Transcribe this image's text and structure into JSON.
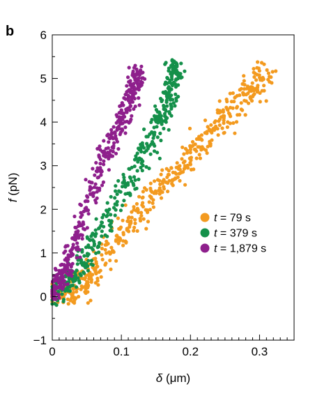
{
  "panel_label": "b",
  "colors": {
    "t79": "#f39a1f",
    "t379": "#14904a",
    "t1879": "#8e1f8c"
  },
  "chart_data": {
    "type": "scatter",
    "xlabel": "δ (μm)",
    "ylabel": "f (pN)",
    "xlim": [
      0,
      0.35
    ],
    "ylim": [
      -1,
      6
    ],
    "xticks": [
      0,
      0.1,
      0.2,
      0.3
    ],
    "xtick_labels": [
      "0",
      "0.1",
      "0.2",
      "0.3"
    ],
    "yticks": [
      -1,
      0,
      1,
      2,
      3,
      4,
      5,
      6
    ],
    "ytick_labels": [
      "−1",
      "0",
      "1",
      "2",
      "3",
      "4",
      "5",
      "6"
    ],
    "grid": false,
    "legend_position": "center-right",
    "series": [
      {
        "name": "t = 79 s",
        "legend_var": "t",
        "legend_rest": " = 79 s",
        "color": "#f39a1f",
        "path": [
          [
            0.0,
            0.0
          ],
          [
            0.03,
            0.1
          ],
          [
            0.06,
            0.6
          ],
          [
            0.1,
            1.5
          ],
          [
            0.15,
            2.4
          ],
          [
            0.2,
            3.2
          ],
          [
            0.24,
            4.0
          ],
          [
            0.28,
            4.6
          ],
          [
            0.31,
            5.2
          ]
        ],
        "width": 0.028,
        "spread": 0.45,
        "count": 520
      },
      {
        "name": "t = 379 s",
        "legend_var": "t",
        "legend_rest": " = 379 s",
        "color": "#14904a",
        "path": [
          [
            0.0,
            0.0
          ],
          [
            0.03,
            0.4
          ],
          [
            0.06,
            1.2
          ],
          [
            0.1,
            2.3
          ],
          [
            0.13,
            3.2
          ],
          [
            0.16,
            4.1
          ],
          [
            0.175,
            5.0
          ],
          [
            0.18,
            5.3
          ]
        ],
        "width": 0.02,
        "spread": 0.4,
        "count": 420
      },
      {
        "name": "t = 1,879 s",
        "legend_var": "t",
        "legend_rest": " = 1,879 s",
        "color": "#8e1f8c",
        "path": [
          [
            0.0,
            0.0
          ],
          [
            0.02,
            0.7
          ],
          [
            0.045,
            1.8
          ],
          [
            0.07,
            3.0
          ],
          [
            0.1,
            4.0
          ],
          [
            0.12,
            4.8
          ],
          [
            0.125,
            5.2
          ]
        ],
        "width": 0.016,
        "spread": 0.35,
        "count": 420
      }
    ]
  }
}
